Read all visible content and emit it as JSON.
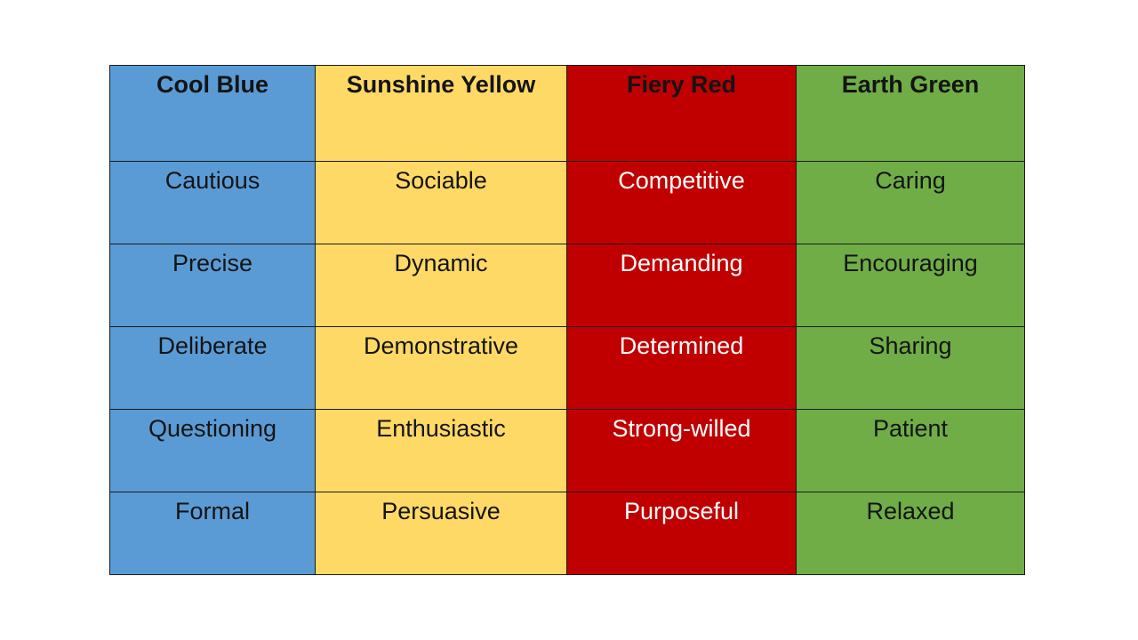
{
  "columns": [
    {
      "header": "Cool Blue",
      "color": "#5b9bd5",
      "text_color": "#141414",
      "traits": [
        "Cautious",
        "Precise",
        "Deliberate",
        "Questioning",
        "Formal"
      ]
    },
    {
      "header": "Sunshine Yellow",
      "color": "#ffd966",
      "text_color": "#141414",
      "traits": [
        "Sociable",
        "Dynamic",
        "Demonstrative",
        "Enthusiastic",
        "Persuasive"
      ]
    },
    {
      "header": "Fiery Red",
      "color": "#c00000",
      "header_text_color": "#141414",
      "text_color": "#ffffff",
      "traits": [
        "Competitive",
        "Demanding",
        "Determined",
        "Strong-willed",
        "Purposeful"
      ]
    },
    {
      "header": "Earth Green",
      "color": "#70ad47",
      "text_color": "#141414",
      "traits": [
        "Caring",
        "Encouraging",
        "Sharing",
        "Patient",
        "Relaxed"
      ]
    }
  ]
}
